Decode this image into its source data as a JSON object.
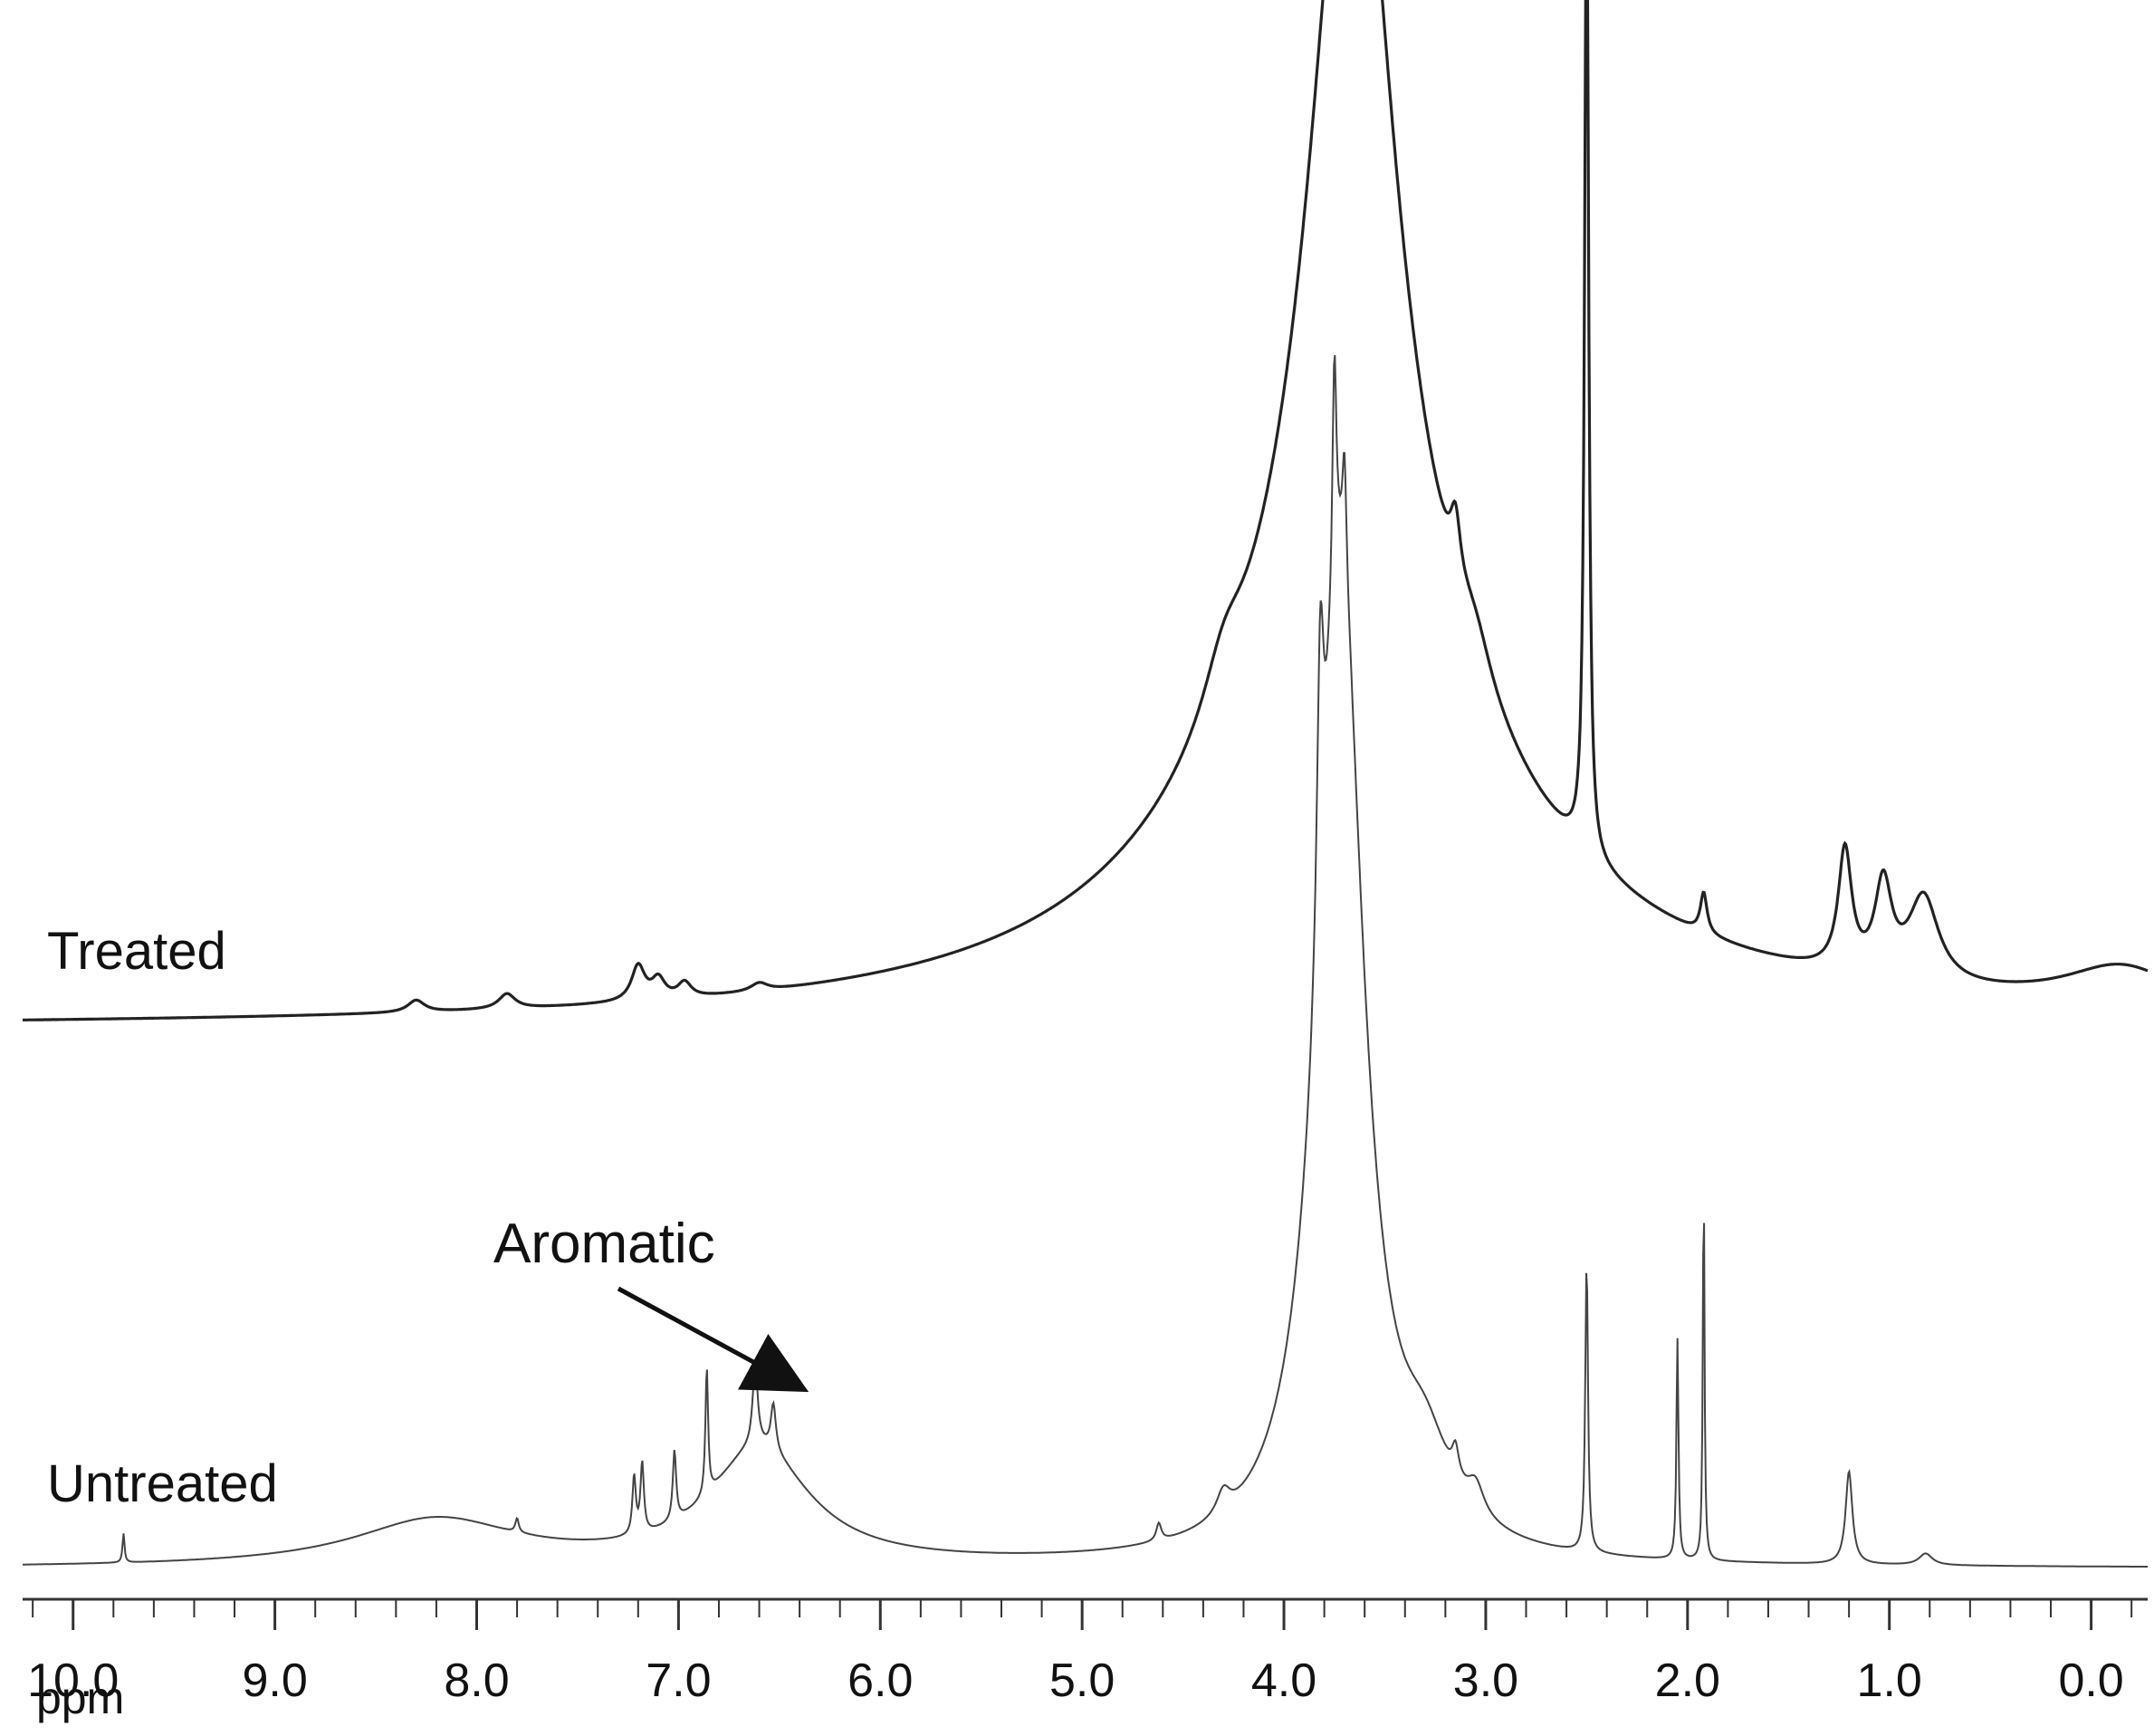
{
  "chart_data": {
    "type": "line",
    "title": "",
    "xlabel": "ppm",
    "ylabel": "",
    "x_reversed": true,
    "xlim": [
      10.25,
      -0.28
    ],
    "x_ticks": [
      "10.0",
      "9.0",
      "8.0",
      "7.0",
      "6.0",
      "5.0",
      "4.0",
      "3.0",
      "2.0",
      "1.0",
      "0.0"
    ],
    "x_tick_values": [
      10.0,
      9.0,
      8.0,
      7.0,
      6.0,
      5.0,
      4.0,
      3.0,
      2.0,
      1.0,
      0.0
    ],
    "minor_tick_step": 0.2,
    "grid": false,
    "legend": "none",
    "series": [
      {
        "name": "Treated",
        "color": "#222222",
        "baseline": 0.0,
        "peaks": [
          {
            "x": 8.3,
            "h": 0.012,
            "w": 0.05
          },
          {
            "x": 7.85,
            "h": 0.015,
            "w": 0.05
          },
          {
            "x": 7.2,
            "h": 0.035,
            "w": 0.04
          },
          {
            "x": 7.1,
            "h": 0.02,
            "w": 0.04
          },
          {
            "x": 6.97,
            "h": 0.015,
            "w": 0.04
          },
          {
            "x": 6.6,
            "h": 0.008,
            "w": 0.05
          },
          {
            "x": 3.66,
            "h": 0.92,
            "w": 0.25
          },
          {
            "x": 3.66,
            "h": 0.35,
            "w": 0.9
          },
          {
            "x": 4.3,
            "h": 0.05,
            "w": 0.12
          },
          {
            "x": 3.15,
            "h": 0.06,
            "w": 0.03
          },
          {
            "x": 3.05,
            "h": 0.04,
            "w": 0.1
          },
          {
            "x": 2.5,
            "h": 1.0,
            "w": 0.012
          },
          {
            "x": 1.92,
            "h": 0.04,
            "w": 0.02
          },
          {
            "x": 1.22,
            "h": 0.12,
            "w": 0.04
          },
          {
            "x": 1.03,
            "h": 0.09,
            "w": 0.05
          },
          {
            "x": 0.83,
            "h": 0.085,
            "w": 0.09
          },
          {
            "x": -0.15,
            "h": 0.04,
            "w": 0.35
          }
        ]
      },
      {
        "name": "Untreated",
        "color": "#444444",
        "baseline": 0.0,
        "peaks": [
          {
            "x": 9.75,
            "h": 0.025,
            "w": 0.006
          },
          {
            "x": 8.2,
            "h": 0.04,
            "w": 0.5
          },
          {
            "x": 7.8,
            "h": 0.012,
            "w": 0.01
          },
          {
            "x": 7.22,
            "h": 0.05,
            "w": 0.01
          },
          {
            "x": 7.18,
            "h": 0.06,
            "w": 0.01
          },
          {
            "x": 7.02,
            "h": 0.06,
            "w": 0.01
          },
          {
            "x": 6.86,
            "h": 0.11,
            "w": 0.008
          },
          {
            "x": 6.6,
            "h": 0.1,
            "w": 0.3
          },
          {
            "x": 6.62,
            "h": 0.07,
            "w": 0.015
          },
          {
            "x": 6.53,
            "h": 0.04,
            "w": 0.015
          },
          {
            "x": 4.62,
            "h": 0.015,
            "w": 0.015
          },
          {
            "x": 4.3,
            "h": 0.02,
            "w": 0.04
          },
          {
            "x": 3.72,
            "h": 0.85,
            "w": 0.14
          },
          {
            "x": 3.82,
            "h": 0.25,
            "w": 0.02
          },
          {
            "x": 3.75,
            "h": 0.2,
            "w": 0.012
          },
          {
            "x": 3.7,
            "h": 0.1,
            "w": 0.012
          },
          {
            "x": 3.3,
            "h": 0.06,
            "w": 0.15
          },
          {
            "x": 3.15,
            "h": 0.025,
            "w": 0.02
          },
          {
            "x": 3.05,
            "h": 0.025,
            "w": 0.05
          },
          {
            "x": 2.5,
            "h": 0.25,
            "w": 0.008
          },
          {
            "x": 2.05,
            "h": 0.19,
            "w": 0.006
          },
          {
            "x": 1.92,
            "h": 0.33,
            "w": 0.005
          },
          {
            "x": 1.2,
            "h": 0.08,
            "w": 0.02
          },
          {
            "x": 0.82,
            "h": 0.01,
            "w": 0.04
          }
        ]
      }
    ],
    "annotations": [
      {
        "text": "Aromatic",
        "points_to_x": 6.9
      }
    ]
  },
  "labels": {
    "treated": "Treated",
    "untreated": "Untreated",
    "aromatic": "Aromatic",
    "unit": "ppm"
  }
}
